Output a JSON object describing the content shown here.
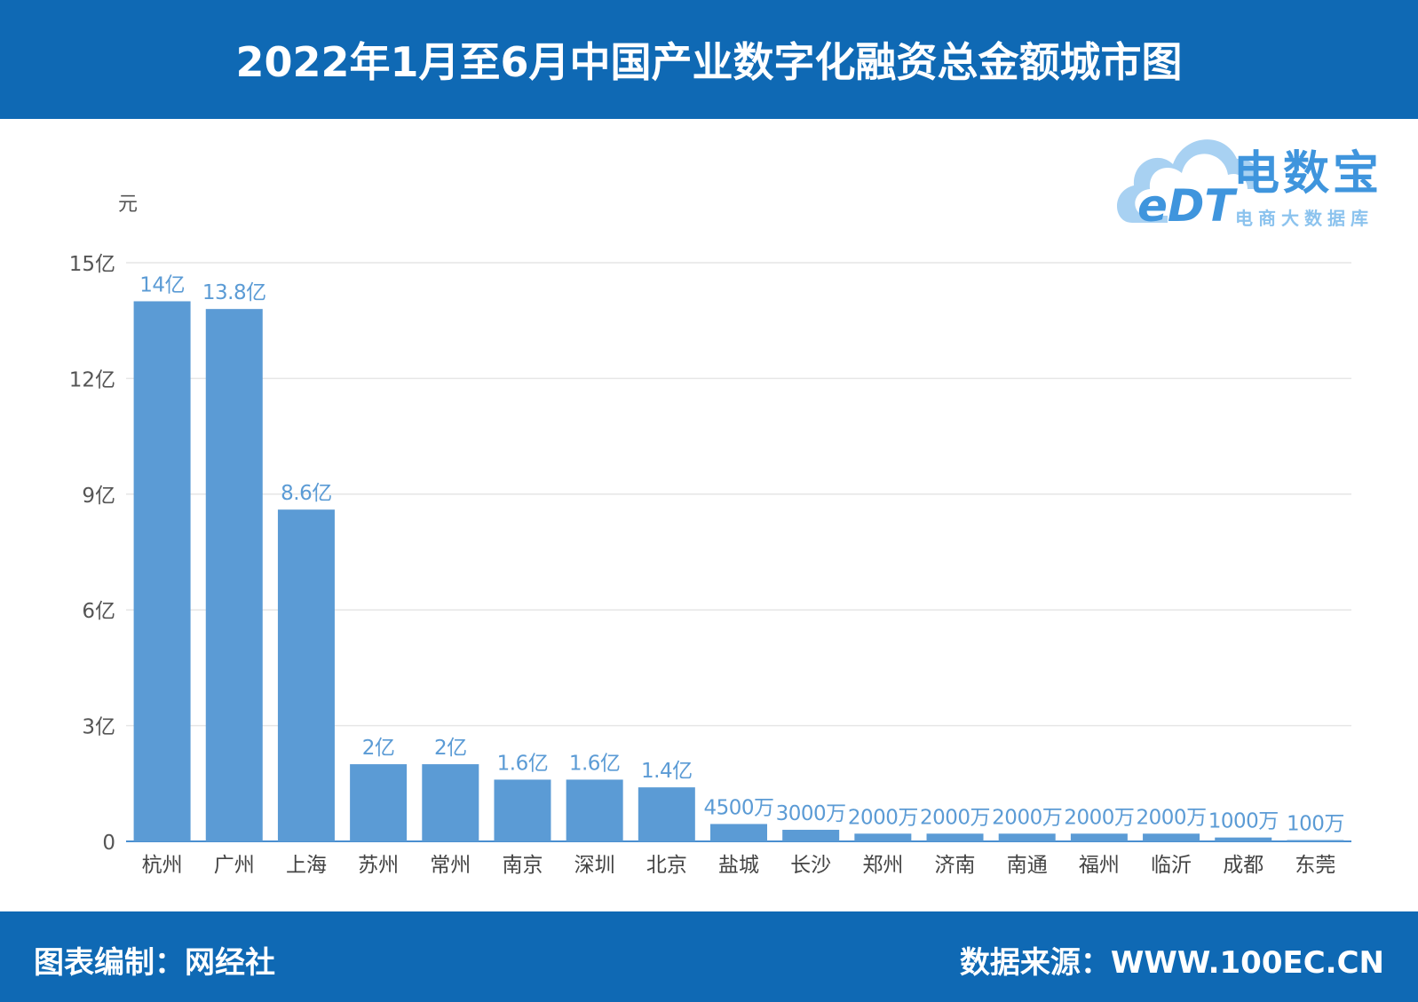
{
  "header": {
    "title": "2022年1月至6月中国产业数字化融资总金额城市图"
  },
  "footer": {
    "left": "图表编制：网经社",
    "right": "数据来源：WWW.100EC.CN"
  },
  "logo": {
    "letters": "eDT",
    "name": "电数宝",
    "sub": "电商大数据库"
  },
  "colors": {
    "header_bg": "#0f69b4",
    "bar": "#5b9bd5",
    "label": "#5b9bd5",
    "grid": "#e6e6e6"
  },
  "chart_data": {
    "type": "bar",
    "unit_label": "元",
    "categories": [
      "杭州",
      "广州",
      "上海",
      "苏州",
      "常州",
      "南京",
      "深圳",
      "北京",
      "盐城",
      "长沙",
      "郑州",
      "济南",
      "南通",
      "福州",
      "临沂",
      "成都",
      "东莞"
    ],
    "values": [
      1400000000,
      1380000000,
      860000000,
      200000000,
      200000000,
      160000000,
      160000000,
      140000000,
      45000000,
      30000000,
      20000000,
      20000000,
      20000000,
      20000000,
      20000000,
      10000000,
      1000000
    ],
    "data_labels": [
      "14亿",
      "13.8亿",
      "8.6亿",
      "2亿",
      "2亿",
      "1.6亿",
      "1.6亿",
      "1.4亿",
      "4500万",
      "3000万",
      "2000万",
      "2000万",
      "2000万",
      "2000万",
      "2000万",
      "1000万",
      "100万"
    ],
    "y_ticks": [
      0,
      300000000,
      600000000,
      900000000,
      1200000000,
      1500000000
    ],
    "y_tick_labels": [
      "0",
      "3亿",
      "6亿",
      "9亿",
      "12亿",
      "15亿"
    ],
    "ylim": [
      0,
      1500000000
    ],
    "grid": true
  }
}
